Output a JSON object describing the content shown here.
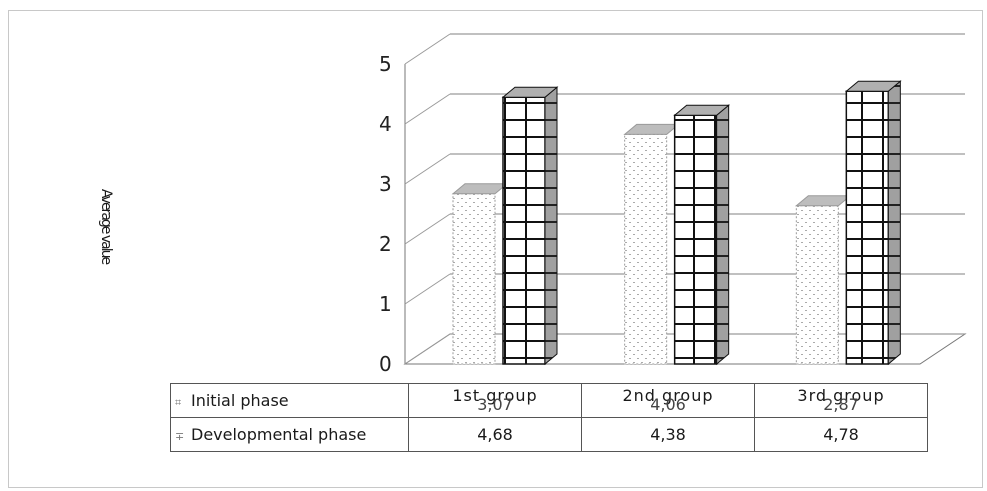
{
  "chart_data": {
    "type": "bar",
    "three_d": true,
    "categories": [
      "1st group",
      "2nd group",
      "3rd group"
    ],
    "series": [
      {
        "name": "Initial phase",
        "values": [
          3.07,
          4.06,
          2.87
        ],
        "fill": "dotted-light-gray"
      },
      {
        "name": "Developmental phase",
        "values": [
          4.68,
          4.38,
          4.78
        ],
        "fill": "grid-black-white"
      }
    ],
    "value_labels": {
      "Initial phase": [
        "3,07",
        "4,06",
        "2,87"
      ],
      "Developmental phase": [
        "4,68",
        "4,38",
        "4,78"
      ]
    },
    "ylabel": "Average value",
    "ylim": [
      0,
      5
    ],
    "yticks": [
      0,
      1,
      2,
      3,
      4,
      5
    ],
    "grid": true,
    "legend": "data-table"
  },
  "table": {
    "row_keys": [
      "⌗",
      "∓"
    ]
  },
  "colors": {
    "axis": "#777777",
    "grid": "#9a9a9a",
    "dev_fill": "#ffffff",
    "dev_side": "#a0a0a0",
    "dev_top": "#b0b0b0",
    "grid_lines": "#111111",
    "init_dots": "#9a9a9a"
  }
}
